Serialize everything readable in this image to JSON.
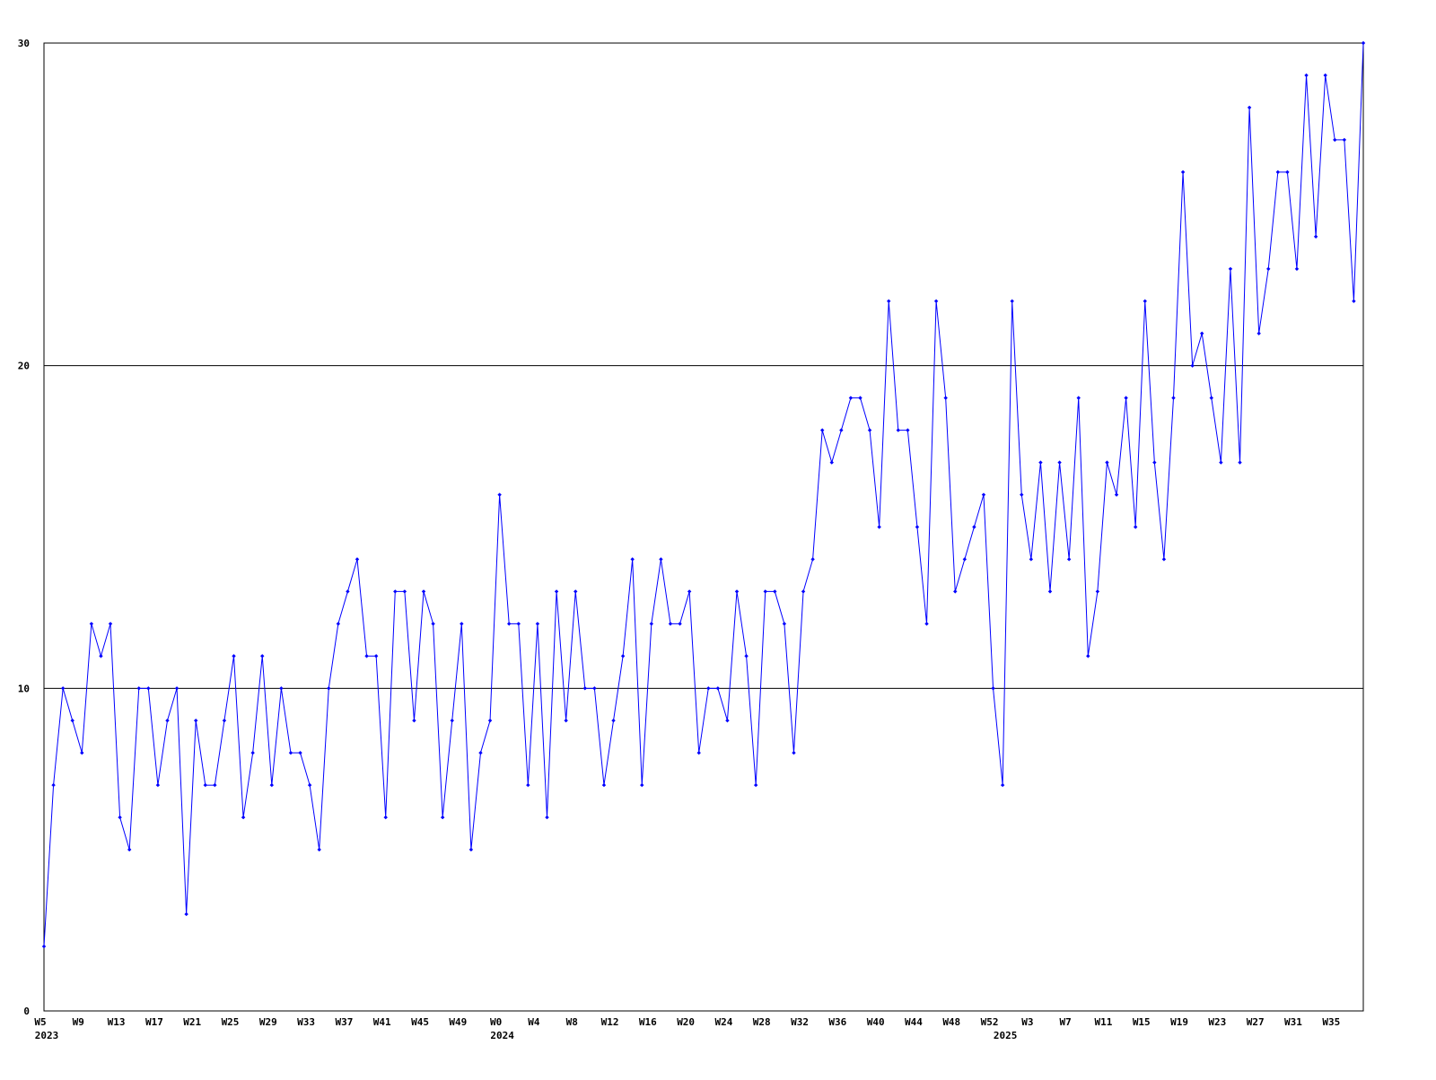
{
  "chart_data": {
    "type": "line",
    "categories": [
      "W5",
      null,
      null,
      null,
      "W9",
      null,
      null,
      null,
      "W13",
      null,
      null,
      null,
      "W17",
      null,
      null,
      null,
      "W21",
      null,
      null,
      null,
      "W25",
      null,
      null,
      null,
      "W29",
      null,
      null,
      null,
      "W33",
      null,
      null,
      null,
      "W37",
      null,
      null,
      null,
      "W41",
      null,
      null,
      null,
      "W45",
      null,
      null,
      null,
      "W49",
      null,
      null,
      null,
      "W0",
      null,
      null,
      null,
      "W4",
      null,
      null,
      null,
      "W8",
      null,
      null,
      null,
      "W12",
      null,
      null,
      null,
      "W16",
      null,
      null,
      null,
      "W20",
      null,
      null,
      null,
      "W24",
      null,
      null,
      null,
      "W28",
      null,
      null,
      null,
      "W32",
      null,
      null,
      null,
      "W36",
      null,
      null,
      null,
      "W40",
      null,
      null,
      null,
      "W44",
      null,
      null,
      null,
      "W48",
      null,
      null,
      null,
      "W52",
      null,
      null,
      null,
      "W3",
      null,
      null,
      null,
      "W7",
      null,
      null,
      null,
      "W11",
      null,
      null,
      null,
      "W15",
      null,
      null,
      null,
      "W19",
      null,
      null,
      null,
      "W23",
      null,
      null,
      null,
      "W27",
      null,
      null,
      null,
      "W31",
      null,
      null,
      null,
      "W35",
      null,
      null,
      null
    ],
    "category_years": [
      "2023",
      null,
      null,
      null,
      null,
      null,
      null,
      null,
      null,
      null,
      null,
      null,
      null,
      null,
      null,
      null,
      null,
      null,
      null,
      null,
      null,
      null,
      null,
      null,
      null,
      null,
      null,
      null,
      null,
      null,
      null,
      null,
      null,
      null,
      null,
      null,
      null,
      null,
      null,
      null,
      null,
      null,
      null,
      null,
      null,
      null,
      null,
      null,
      "2024",
      null,
      null,
      null,
      null,
      null,
      null,
      null,
      null,
      null,
      null,
      null,
      null,
      null,
      null,
      null,
      null,
      null,
      null,
      null,
      null,
      null,
      null,
      null,
      null,
      null,
      null,
      null,
      null,
      null,
      null,
      null,
      null,
      null,
      null,
      null,
      null,
      null,
      null,
      null,
      null,
      null,
      null,
      null,
      null,
      null,
      null,
      null,
      null,
      null,
      null,
      null,
      null,
      "2025",
      null,
      null,
      null,
      null,
      null,
      null,
      null,
      null,
      null,
      null,
      null,
      null,
      null,
      null,
      null,
      null,
      null,
      null,
      null,
      null,
      null,
      null,
      null,
      null,
      null,
      null,
      null,
      null,
      null,
      null,
      null,
      null,
      null,
      null,
      null,
      null,
      null,
      null
    ],
    "color": "#0000ff",
    "values": [
      2,
      7,
      10,
      9,
      8,
      12,
      11,
      12,
      6,
      5,
      10,
      10,
      7,
      9,
      10,
      3,
      9,
      7,
      7,
      9,
      11,
      6,
      8,
      11,
      7,
      10,
      8,
      8,
      7,
      5,
      10,
      12,
      13,
      14,
      11,
      11,
      6,
      13,
      13,
      9,
      13,
      12,
      6,
      9,
      12,
      5,
      8,
      9,
      16,
      12,
      12,
      7,
      12,
      6,
      13,
      9,
      13,
      10,
      10,
      7,
      9,
      11,
      14,
      7,
      12,
      14,
      12,
      12,
      13,
      8,
      10,
      10,
      9,
      13,
      11,
      7,
      13,
      13,
      12,
      8,
      13,
      14,
      18,
      17,
      18,
      19,
      19,
      18,
      15,
      22,
      18,
      18,
      15,
      12,
      22,
      19,
      13,
      14,
      15,
      16,
      10,
      7,
      22,
      16,
      14,
      17,
      13,
      17,
      14,
      19,
      11,
      13,
      17,
      16,
      19,
      15,
      22,
      17,
      14,
      19,
      26,
      20,
      21,
      19,
      17,
      23,
      17,
      28,
      21,
      23,
      26,
      26,
      23,
      29,
      24,
      29,
      27,
      27,
      22,
      30
    ],
    "ylim": [
      0,
      30
    ],
    "yticks": [
      0,
      10,
      20,
      30
    ],
    "grid": true
  }
}
